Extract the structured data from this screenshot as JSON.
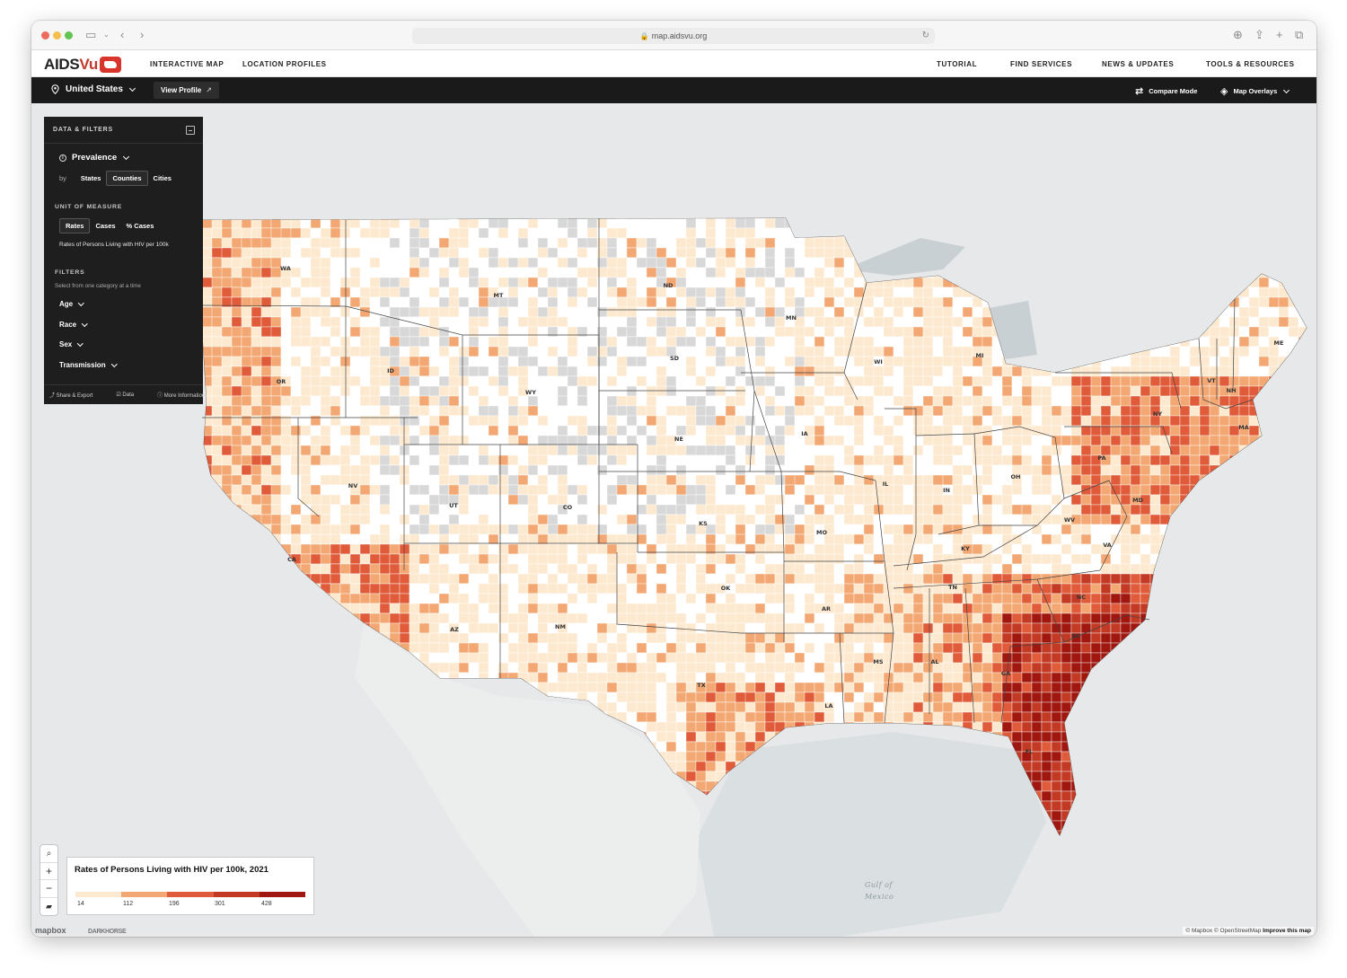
{
  "browser": {
    "url": "map.aidsvu.org",
    "traffic_colors": [
      "#ec6a5e",
      "#f4bf4f",
      "#61c554"
    ]
  },
  "site_nav": {
    "logo_text_a": "AIDS",
    "logo_text_b": "Vu",
    "left_links": [
      "INTERACTIVE MAP",
      "LOCATION PROFILES"
    ],
    "right_links": [
      "TUTORIAL",
      "FIND SERVICES",
      "NEWS & UPDATES",
      "TOOLS & RESOURCES"
    ]
  },
  "map_bar": {
    "location": "United States",
    "view_profile": "View Profile",
    "compare_mode": "Compare Mode",
    "map_overlays": "Map Overlays"
  },
  "panel": {
    "title": "DATA & FILTERS",
    "metric": "Prevalence",
    "by_label": "by",
    "geo_options": [
      "States",
      "Counties",
      "Cities"
    ],
    "geo_selected": "Counties",
    "unit_title": "UNIT OF MEASURE",
    "unit_options": [
      "Rates",
      "Cases",
      "% Cases"
    ],
    "unit_selected": "Rates",
    "unit_description": "Rates of Persons Living with HIV per 100k",
    "filters_title": "FILTERS",
    "filters_note": "Select from one category at a time",
    "filters": [
      "Age",
      "Race",
      "Sex",
      "Transmission"
    ],
    "footer": [
      "Share & Export",
      "Data",
      "More Information"
    ]
  },
  "legend": {
    "title": "Rates of Persons Living with HIV per 100k, 2021",
    "colors": [
      "#fde9cf",
      "#f3a874",
      "#e05b3a",
      "#c23a23",
      "#a0170f"
    ],
    "ticks": [
      "14",
      "112",
      "196",
      "301",
      "428"
    ]
  },
  "map": {
    "state_labels": [
      "WA",
      "OR",
      "CA",
      "NV",
      "ID",
      "MT",
      "WY",
      "UT",
      "AZ",
      "CO",
      "NM",
      "ND",
      "SD",
      "NE",
      "KS",
      "OK",
      "TX",
      "MN",
      "IA",
      "MO",
      "AR",
      "LA",
      "WI",
      "IL",
      "MS",
      "AL",
      "MI",
      "IN",
      "KY",
      "TN",
      "GA",
      "FL",
      "OH",
      "WV",
      "VA",
      "NC",
      "SC",
      "PA",
      "NY",
      "VT",
      "NH",
      "ME",
      "MA",
      "MD"
    ],
    "gulf_label_1": "Gulf of",
    "gulf_label_2": "Mexico",
    "attribution_a": "© Mapbox © OpenStreetMap",
    "attribution_b": "Improve this map",
    "mapbox_label": "mapbox",
    "darkhorse_label": "DARKHORSE"
  },
  "zoom_controls": [
    "search-icon",
    "zoom-in-icon",
    "zoom-out-icon",
    "us-shape-icon"
  ]
}
